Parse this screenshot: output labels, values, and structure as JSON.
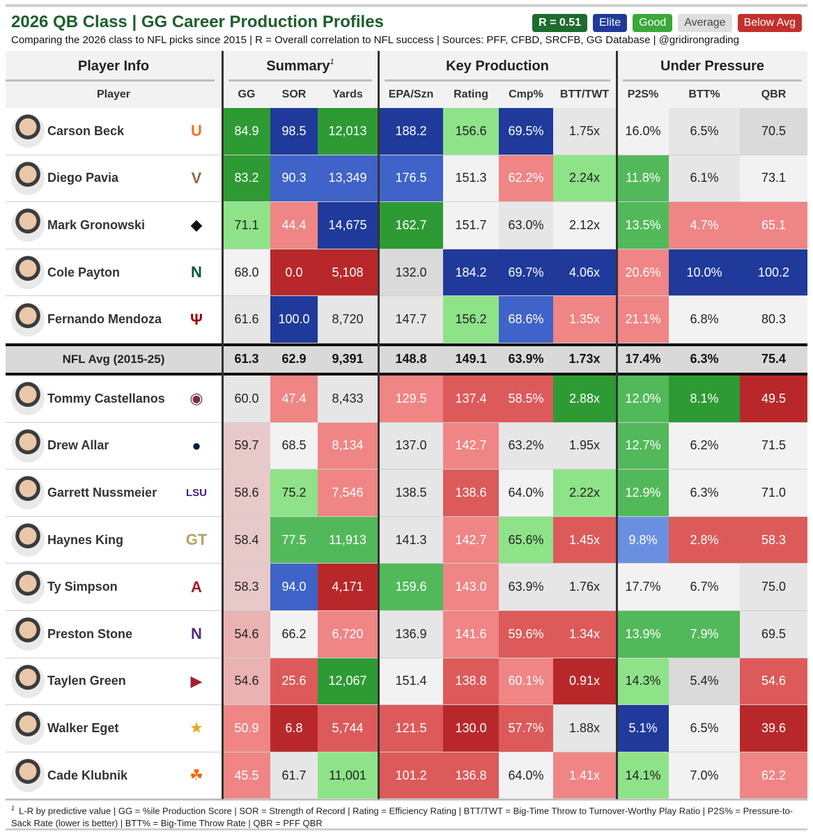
{
  "title": "2026 QB Class | GG Career Production Profiles",
  "subtitle": "Comparing the 2026 class to NFL picks since 2015 | R = Overall correlation to NFL success | Sources: PFF, CFBD, SRCFB, GG Database | @gridirongrading",
  "legend": {
    "r": "R = 0.51",
    "elite": "Elite",
    "good": "Good",
    "average": "Average",
    "below": "Below Avg"
  },
  "groups": {
    "player_info": "Player Info",
    "summary": "Summary",
    "summary_sup": "1",
    "key_production": "Key Production",
    "under_pressure": "Under Pressure"
  },
  "columns": {
    "player": "Player",
    "gg": "GG",
    "sor": "SOR",
    "yards": "Yards",
    "epa": "EPA/Szn",
    "rating": "Rating",
    "cmp": "Cmp%",
    "btt_twt": "BTT/TWT",
    "p2s": "P2S%",
    "btt": "BTT%",
    "qbr": "QBR"
  },
  "colors": {
    "elite_dark": "#1f3a9a",
    "elite": "#3f63c8",
    "elite_light": "#6b8fe0",
    "good_dark": "#2e9a34",
    "good": "#52b95a",
    "good_light": "#8ee388",
    "neutral_light": "#f2f2f2",
    "neutral": "#e6e6e6",
    "neutral_dark": "#dadada",
    "below_light": "#f08585",
    "below": "#dd5a5a",
    "below_dark": "#b8282a",
    "pinkish": "#e8c9c9",
    "pinkish2": "#ebb2b2"
  },
  "avg_row": {
    "label": "NFL Avg (2015-25)",
    "values": [
      "61.3",
      "62.9",
      "9,391",
      "148.8",
      "149.1",
      "63.9%",
      "1.73x",
      "17.4%",
      "6.3%",
      "75.4"
    ]
  },
  "chart_data": {
    "type": "table",
    "title": "2026 QB Class | GG Career Production Profiles",
    "columns": [
      "Player",
      "GG",
      "SOR",
      "Yards",
      "EPA/Szn",
      "Rating",
      "Cmp%",
      "BTT/TWT",
      "P2S%",
      "BTT%",
      "QBR"
    ],
    "rows_above_avg": [
      {
        "player": "Carson Beck",
        "school_logo": "miami-u-icon",
        "logo_color": "#f47321",
        "values": [
          "84.9",
          "98.5",
          "12,013",
          "188.2",
          "156.6",
          "69.5%",
          "1.75x",
          "16.0%",
          "6.5%",
          "70.5"
        ],
        "tones": [
          "good_dark",
          "elite_dark",
          "good_dark",
          "elite_dark",
          "good_light",
          "elite_dark",
          "neutral",
          "neutral_light",
          "neutral",
          "neutral_dark"
        ]
      },
      {
        "player": "Diego Pavia",
        "school_logo": "vanderbilt-v-icon",
        "logo_color": "#866d4b",
        "values": [
          "83.2",
          "90.3",
          "13,349",
          "176.5",
          "151.3",
          "62.2%",
          "2.24x",
          "11.8%",
          "6.1%",
          "73.1"
        ],
        "tones": [
          "good_dark",
          "elite",
          "elite",
          "elite",
          "neutral_light",
          "below_light",
          "good_light",
          "good",
          "neutral",
          "neutral_light"
        ]
      },
      {
        "player": "Mark Gronowski",
        "school_logo": "iowa-hawk-icon",
        "logo_color": "#111111",
        "values": [
          "71.1",
          "44.4",
          "14,675",
          "162.7",
          "151.7",
          "63.0%",
          "2.12x",
          "13.5%",
          "4.7%",
          "65.1"
        ],
        "tones": [
          "good_light",
          "below_light",
          "elite_dark",
          "good_dark",
          "neutral_light",
          "neutral",
          "neutral_light",
          "good",
          "below_light",
          "below_light"
        ]
      },
      {
        "player": "Cole Payton",
        "school_logo": "ndsu-bison-icon",
        "logo_color": "#0a5640",
        "values": [
          "68.0",
          "0.0",
          "5,108",
          "132.0",
          "184.2",
          "69.7%",
          "4.06x",
          "20.6%",
          "10.0%",
          "100.2"
        ],
        "tones": [
          "neutral_light",
          "below_dark",
          "below_dark",
          "neutral_dark",
          "elite_dark",
          "elite_dark",
          "elite_dark",
          "below_light",
          "elite_dark",
          "elite_dark"
        ]
      },
      {
        "player": "Fernando Mendoza",
        "school_logo": "indiana-iu-icon",
        "logo_color": "#990000",
        "values": [
          "61.6",
          "100.0",
          "8,720",
          "147.7",
          "156.2",
          "68.6%",
          "1.35x",
          "21.1%",
          "6.8%",
          "80.3"
        ],
        "tones": [
          "neutral",
          "elite_dark",
          "neutral",
          "neutral",
          "good_light",
          "elite",
          "below_light",
          "below_light",
          "neutral_light",
          "neutral_light"
        ]
      }
    ],
    "nfl_average": {
      "label": "NFL Avg (2015-25)",
      "values": [
        "61.3",
        "62.9",
        "9,391",
        "148.8",
        "149.1",
        "63.9%",
        "1.73x",
        "17.4%",
        "6.3%",
        "75.4"
      ]
    },
    "rows_below_avg": [
      {
        "player": "Tommy Castellanos",
        "school_logo": "florida-state-icon",
        "logo_color": "#782f40",
        "values": [
          "60.0",
          "47.4",
          "8,433",
          "129.5",
          "137.4",
          "58.5%",
          "2.88x",
          "12.0%",
          "8.1%",
          "49.5"
        ],
        "tones": [
          "neutral",
          "below_light",
          "neutral",
          "below_light",
          "below",
          "below",
          "good_dark",
          "good",
          "good_dark",
          "below_dark"
        ]
      },
      {
        "player": "Drew Allar",
        "school_logo": "penn-state-icon",
        "logo_color": "#041e42",
        "values": [
          "59.7",
          "68.5",
          "8,134",
          "137.0",
          "142.7",
          "63.2%",
          "1.95x",
          "12.7%",
          "6.2%",
          "71.5"
        ],
        "tones": [
          "pinkish",
          "neutral_light",
          "below_light",
          "neutral",
          "below_light",
          "neutral",
          "neutral",
          "good",
          "neutral_light",
          "neutral_light"
        ]
      },
      {
        "player": "Garrett Nussmeier",
        "school_logo": "lsu-icon",
        "logo_color": "#461d7c",
        "values": [
          "58.6",
          "75.2",
          "7,546",
          "138.5",
          "138.6",
          "64.0%",
          "2.22x",
          "12.9%",
          "6.3%",
          "71.0"
        ],
        "tones": [
          "pinkish",
          "good_light",
          "below_light",
          "neutral",
          "below",
          "neutral_light",
          "good_light",
          "good",
          "neutral_light",
          "neutral_light"
        ]
      },
      {
        "player": "Haynes King",
        "school_logo": "georgia-tech-icon",
        "logo_color": "#b3a369",
        "values": [
          "58.4",
          "77.5",
          "11,913",
          "141.3",
          "142.7",
          "65.6%",
          "1.45x",
          "9.8%",
          "2.8%",
          "58.3"
        ],
        "tones": [
          "pinkish",
          "good",
          "good",
          "neutral",
          "below_light",
          "good_light",
          "below",
          "elite_light",
          "below",
          "below"
        ]
      },
      {
        "player": "Ty Simpson",
        "school_logo": "alabama-icon",
        "logo_color": "#9e1b32",
        "values": [
          "58.3",
          "94.0",
          "4,171",
          "159.6",
          "143.0",
          "63.9%",
          "1.76x",
          "17.7%",
          "6.7%",
          "75.0"
        ],
        "tones": [
          "pinkish",
          "elite",
          "below_dark",
          "good",
          "below_light",
          "neutral",
          "neutral",
          "neutral_light",
          "neutral_light",
          "neutral"
        ]
      },
      {
        "player": "Preston Stone",
        "school_logo": "northwestern-icon",
        "logo_color": "#4e2a84",
        "values": [
          "54.6",
          "66.2",
          "6,720",
          "136.9",
          "141.6",
          "59.6%",
          "1.34x",
          "13.9%",
          "7.9%",
          "69.5"
        ],
        "tones": [
          "pinkish2",
          "neutral_light",
          "below_light",
          "neutral",
          "below_light",
          "below",
          "below",
          "good",
          "good",
          "neutral"
        ]
      },
      {
        "player": "Taylen Green",
        "school_logo": "arkansas-icon",
        "logo_color": "#9d2235",
        "values": [
          "54.6",
          "25.6",
          "12,067",
          "151.4",
          "138.8",
          "60.1%",
          "0.91x",
          "14.3%",
          "5.4%",
          "54.6"
        ],
        "tones": [
          "pinkish2",
          "below",
          "good_dark",
          "neutral_light",
          "below",
          "below_light",
          "below_dark",
          "good_light",
          "neutral_dark",
          "below"
        ]
      },
      {
        "player": "Walker Eget",
        "school_logo": "san-jose-state-icon",
        "logo_color": "#e5a823",
        "values": [
          "50.9",
          "6.8",
          "5,744",
          "121.5",
          "130.0",
          "57.7%",
          "1.88x",
          "5.1%",
          "6.5%",
          "39.6"
        ],
        "tones": [
          "below_light",
          "below_dark",
          "below",
          "below",
          "below_dark",
          "below",
          "neutral",
          "elite_dark",
          "neutral_light",
          "below_dark"
        ]
      },
      {
        "player": "Cade Klubnik",
        "school_logo": "clemson-icon",
        "logo_color": "#f56600",
        "values": [
          "45.5",
          "61.7",
          "11,001",
          "101.2",
          "136.8",
          "64.0%",
          "1.41x",
          "14.1%",
          "7.0%",
          "62.2"
        ],
        "tones": [
          "below_light",
          "neutral",
          "good_light",
          "below",
          "below",
          "neutral_light",
          "below_light",
          "good_light",
          "neutral_light",
          "below_light"
        ]
      }
    ]
  },
  "footnote": {
    "sup": "1",
    "text": "L-R by predictive value | GG = %ile Production Score | SOR = Strength of Record | Rating = Efficiency Rating | BTT/TWT = Big-Time Throw to Turnover-Worthy Play Ratio | P2S% = Pressure-to-Sack Rate (lower is better) | BTT% = Big-Time Throw Rate | QBR = PFF QBR"
  }
}
